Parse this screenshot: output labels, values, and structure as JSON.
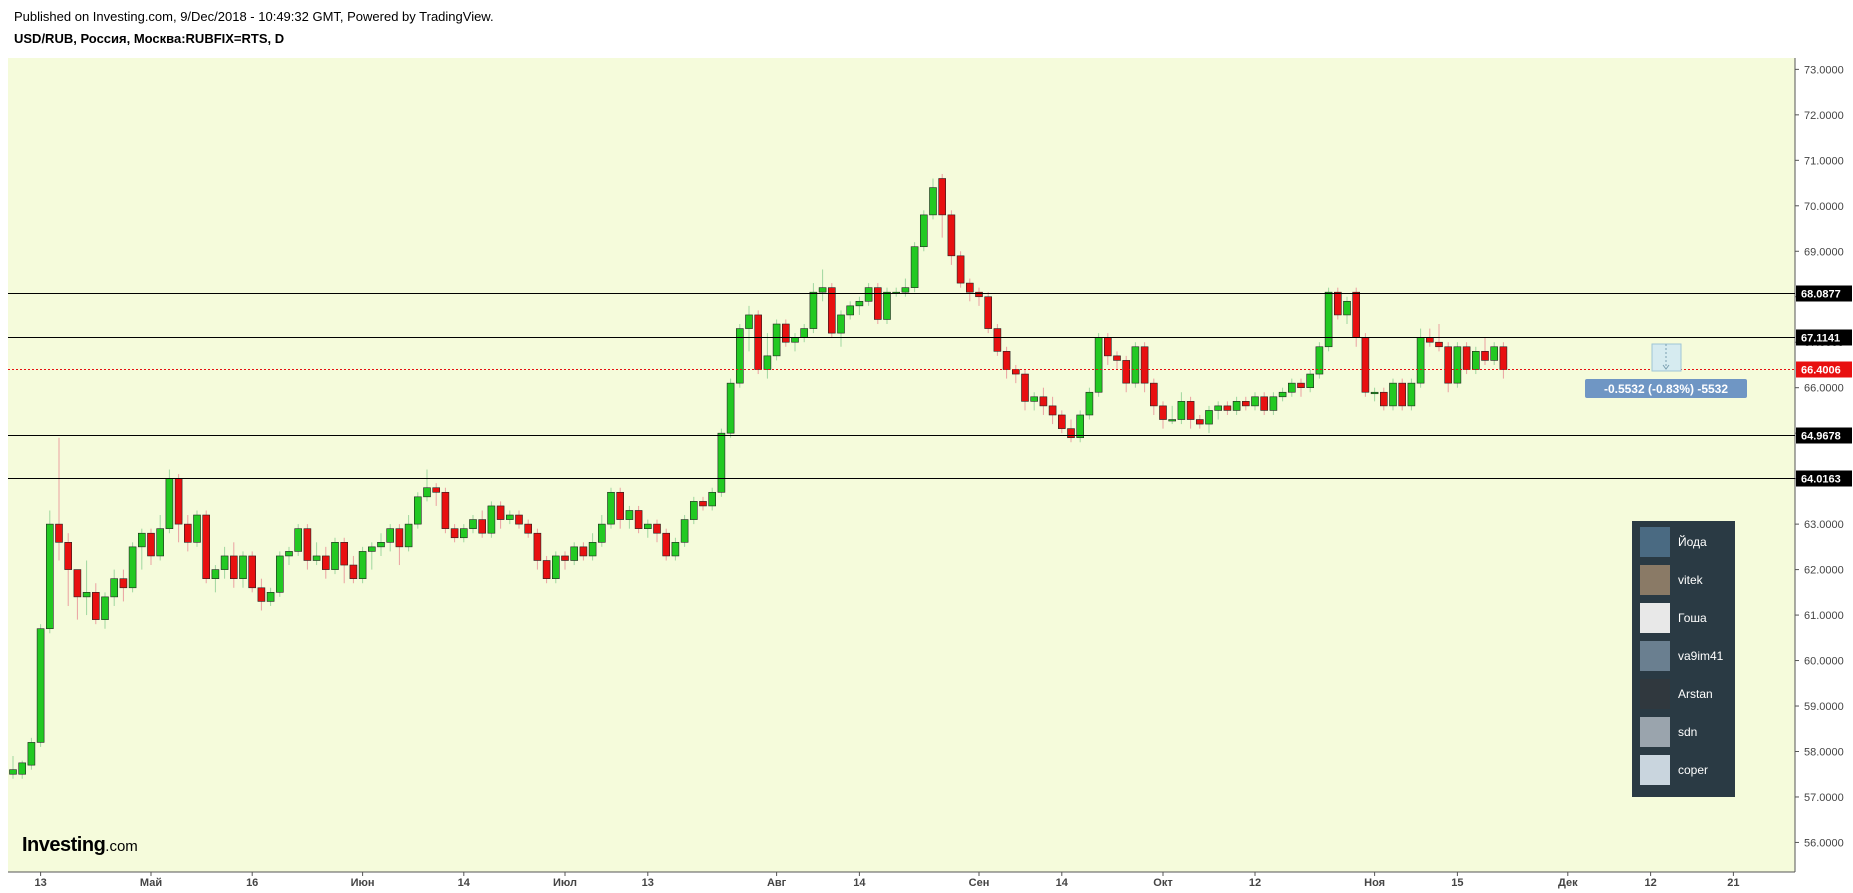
{
  "header": {
    "published": "Published on Investing.com, 9/Dec/2018 - 10:49:32 GMT, Powered by TradingView.",
    "symbol": "USD/RUB, Россия, Москва:RUBFIX=RTS, D"
  },
  "colors": {
    "background": "#f5fbdb",
    "up": "#22c922",
    "down": "#e81010",
    "last_line": "#e81010",
    "badge_dark": "#000000",
    "badge_red": "#e81010",
    "change_badge": "#6f96c4"
  },
  "chart_data": {
    "type": "candlestick",
    "y_ticks": [
      "56.0000",
      "57.0000",
      "58.0000",
      "59.0000",
      "60.0000",
      "61.0000",
      "62.0000",
      "63.0000",
      "64.0000",
      "65.0000",
      "66.0000",
      "67.0000",
      "68.0000",
      "69.0000",
      "70.0000",
      "71.0000",
      "72.0000",
      "73.0000"
    ],
    "ylim": [
      55.35,
      73.25
    ],
    "x_ticks": [
      {
        "label": "13",
        "day": 3
      },
      {
        "label": "Май",
        "day": 15
      },
      {
        "label": "16",
        "day": 26
      },
      {
        "label": "Июн",
        "day": 38
      },
      {
        "label": "14",
        "day": 49
      },
      {
        "label": "Июл",
        "day": 60
      },
      {
        "label": "13",
        "day": 69
      },
      {
        "label": "Авг",
        "day": 83
      },
      {
        "label": "14",
        "day": 92
      },
      {
        "label": "Сен",
        "day": 105
      },
      {
        "label": "14",
        "day": 114
      },
      {
        "label": "Окт",
        "day": 125
      },
      {
        "label": "12",
        "day": 135
      },
      {
        "label": "Ноя",
        "day": 148
      },
      {
        "label": "15",
        "day": 157
      },
      {
        "label": "Дек",
        "day": 169
      },
      {
        "label": "12",
        "day": 178
      },
      {
        "label": "21",
        "day": 187
      }
    ],
    "levels": [
      {
        "label": "68.0877",
        "value": 68.0877
      },
      {
        "label": "67.1141",
        "value": 67.1141
      },
      {
        "label": "64.9678",
        "value": 64.9678
      },
      {
        "label": "64.0163",
        "value": 64.0163
      }
    ],
    "last_price": {
      "label": "66.4006",
      "value": 66.4006
    },
    "change_label": "-0.5532 (-0.83%) -5532",
    "candles": [
      [
        57.5,
        57.6,
        57.9,
        57.4
      ],
      [
        57.5,
        57.75,
        57.8,
        57.4
      ],
      [
        57.7,
        58.2,
        58.3,
        57.6
      ],
      [
        58.2,
        60.7,
        60.8,
        58.1
      ],
      [
        60.7,
        63.0,
        63.3,
        60.6
      ],
      [
        63.0,
        62.6,
        64.9,
        62.2
      ],
      [
        62.6,
        62.0,
        62.8,
        61.2
      ],
      [
        62.0,
        61.4,
        62.0,
        60.9
      ],
      [
        61.4,
        61.5,
        62.2,
        61.0
      ],
      [
        61.5,
        60.9,
        61.7,
        60.8
      ],
      [
        60.9,
        61.4,
        61.5,
        60.7
      ],
      [
        61.4,
        61.8,
        62.0,
        61.2
      ],
      [
        61.8,
        61.6,
        62.0,
        61.3
      ],
      [
        61.6,
        62.5,
        62.6,
        61.5
      ],
      [
        62.5,
        62.8,
        62.9,
        62.0
      ],
      [
        62.8,
        62.3,
        62.9,
        62.1
      ],
      [
        62.3,
        62.9,
        63.2,
        62.2
      ],
      [
        62.9,
        64.0,
        64.2,
        62.8
      ],
      [
        64.0,
        63.0,
        64.1,
        62.6
      ],
      [
        63.0,
        62.6,
        63.2,
        62.4
      ],
      [
        62.6,
        63.2,
        63.3,
        62.5
      ],
      [
        63.2,
        61.8,
        63.3,
        61.7
      ],
      [
        61.8,
        62.0,
        62.1,
        61.5
      ],
      [
        62.0,
        62.3,
        62.5,
        61.8
      ],
      [
        62.3,
        61.8,
        62.6,
        61.6
      ],
      [
        61.8,
        62.3,
        62.4,
        61.6
      ],
      [
        62.3,
        61.6,
        62.4,
        61.5
      ],
      [
        61.6,
        61.3,
        61.8,
        61.1
      ],
      [
        61.3,
        61.5,
        61.6,
        61.2
      ],
      [
        61.5,
        62.3,
        62.4,
        61.4
      ],
      [
        62.3,
        62.4,
        62.5,
        62.1
      ],
      [
        62.4,
        62.9,
        63.0,
        62.3
      ],
      [
        62.9,
        62.2,
        63.0,
        62.0
      ],
      [
        62.2,
        62.3,
        62.6,
        62.1
      ],
      [
        62.3,
        62.0,
        62.5,
        61.8
      ],
      [
        62.0,
        62.6,
        62.7,
        61.9
      ],
      [
        62.6,
        62.1,
        62.7,
        61.7
      ],
      [
        62.1,
        61.8,
        62.3,
        61.7
      ],
      [
        61.8,
        62.4,
        62.5,
        61.7
      ],
      [
        62.4,
        62.5,
        62.6,
        62.0
      ],
      [
        62.5,
        62.6,
        62.8,
        62.3
      ],
      [
        62.6,
        62.9,
        63.0,
        62.4
      ],
      [
        62.9,
        62.5,
        63.0,
        62.1
      ],
      [
        62.5,
        63.0,
        63.2,
        62.4
      ],
      [
        63.0,
        63.6,
        63.7,
        62.9
      ],
      [
        63.6,
        63.8,
        64.2,
        63.5
      ],
      [
        63.8,
        63.7,
        63.9,
        63.4
      ],
      [
        63.7,
        62.9,
        63.8,
        62.8
      ],
      [
        62.9,
        62.7,
        63.0,
        62.6
      ],
      [
        62.7,
        62.9,
        63.0,
        62.6
      ],
      [
        62.9,
        63.1,
        63.2,
        62.8
      ],
      [
        63.1,
        62.8,
        63.3,
        62.7
      ],
      [
        62.8,
        63.4,
        63.5,
        62.7
      ],
      [
        63.4,
        63.1,
        63.5,
        62.9
      ],
      [
        63.1,
        63.2,
        63.3,
        63.0
      ],
      [
        63.2,
        63.0,
        63.3,
        62.9
      ],
      [
        63.0,
        62.8,
        63.1,
        62.7
      ],
      [
        62.8,
        62.2,
        62.9,
        62.0
      ],
      [
        62.2,
        61.8,
        62.3,
        61.7
      ],
      [
        61.8,
        62.3,
        62.4,
        61.7
      ],
      [
        62.3,
        62.2,
        62.4,
        62.0
      ],
      [
        62.2,
        62.5,
        62.6,
        62.1
      ],
      [
        62.5,
        62.3,
        62.6,
        62.2
      ],
      [
        62.3,
        62.6,
        62.8,
        62.2
      ],
      [
        62.6,
        63.0,
        63.2,
        62.5
      ],
      [
        63.0,
        63.7,
        63.8,
        62.9
      ],
      [
        63.7,
        63.1,
        63.8,
        62.9
      ],
      [
        63.1,
        63.3,
        63.4,
        62.9
      ],
      [
        63.3,
        62.9,
        63.4,
        62.8
      ],
      [
        62.9,
        63.0,
        63.1,
        62.7
      ],
      [
        63.0,
        62.8,
        63.1,
        62.6
      ],
      [
        62.8,
        62.3,
        62.9,
        62.2
      ],
      [
        62.3,
        62.6,
        62.7,
        62.2
      ],
      [
        62.6,
        63.1,
        63.2,
        62.5
      ],
      [
        63.1,
        63.5,
        63.6,
        63.0
      ],
      [
        63.5,
        63.4,
        63.6,
        63.3
      ],
      [
        63.4,
        63.7,
        63.8,
        63.3
      ],
      [
        63.7,
        65.0,
        65.1,
        63.6
      ],
      [
        65.0,
        66.1,
        66.2,
        64.9
      ],
      [
        66.1,
        67.3,
        67.4,
        66.0
      ],
      [
        67.3,
        67.6,
        67.8,
        66.8
      ],
      [
        67.6,
        66.4,
        67.7,
        66.3
      ],
      [
        66.4,
        66.7,
        67.2,
        66.2
      ],
      [
        66.7,
        67.4,
        67.5,
        66.6
      ],
      [
        67.4,
        67.0,
        67.5,
        66.9
      ],
      [
        67.0,
        67.1,
        67.2,
        66.8
      ],
      [
        67.1,
        67.3,
        67.4,
        67.0
      ],
      [
        67.3,
        68.1,
        68.3,
        67.2
      ],
      [
        68.1,
        68.2,
        68.6,
        67.9
      ],
      [
        68.2,
        67.2,
        68.3,
        67.1
      ],
      [
        67.2,
        67.6,
        67.7,
        66.9
      ],
      [
        67.6,
        67.8,
        67.9,
        67.5
      ],
      [
        67.8,
        67.9,
        68.0,
        67.6
      ],
      [
        67.9,
        68.2,
        68.3,
        67.8
      ],
      [
        68.2,
        67.5,
        68.3,
        67.4
      ],
      [
        67.5,
        68.1,
        68.2,
        67.4
      ],
      [
        68.1,
        68.1,
        68.2,
        68.0
      ],
      [
        68.1,
        68.2,
        68.4,
        68.0
      ],
      [
        68.2,
        69.1,
        69.2,
        68.1
      ],
      [
        69.1,
        69.8,
        69.9,
        69.0
      ],
      [
        69.8,
        70.4,
        70.6,
        69.7
      ],
      [
        70.6,
        69.8,
        70.7,
        69.3
      ],
      [
        69.8,
        68.9,
        69.9,
        68.7
      ],
      [
        68.9,
        68.3,
        69.0,
        68.2
      ],
      [
        68.3,
        68.1,
        68.4,
        67.9
      ],
      [
        68.1,
        68.0,
        68.2,
        67.8
      ],
      [
        68.0,
        67.3,
        68.1,
        67.2
      ],
      [
        67.3,
        66.8,
        67.4,
        66.7
      ],
      [
        66.8,
        66.4,
        66.9,
        66.2
      ],
      [
        66.4,
        66.3,
        66.5,
        66.1
      ],
      [
        66.3,
        65.7,
        66.4,
        65.5
      ],
      [
        65.7,
        65.8,
        65.9,
        65.5
      ],
      [
        65.8,
        65.6,
        66.0,
        65.4
      ],
      [
        65.6,
        65.4,
        65.8,
        65.2
      ],
      [
        65.4,
        65.1,
        65.5,
        65.0
      ],
      [
        65.1,
        64.9,
        65.3,
        64.8
      ],
      [
        64.9,
        65.4,
        65.5,
        64.8
      ],
      [
        65.4,
        65.9,
        66.0,
        65.3
      ],
      [
        65.9,
        67.1,
        67.2,
        65.8
      ],
      [
        67.1,
        66.7,
        67.2,
        66.5
      ],
      [
        66.7,
        66.6,
        66.8,
        66.4
      ],
      [
        66.6,
        66.1,
        66.7,
        65.9
      ],
      [
        66.1,
        66.9,
        67.0,
        66.0
      ],
      [
        66.9,
        66.1,
        67.0,
        65.9
      ],
      [
        66.1,
        65.6,
        66.2,
        65.4
      ],
      [
        65.6,
        65.3,
        65.7,
        65.1
      ],
      [
        65.3,
        65.3,
        65.6,
        65.2
      ],
      [
        65.3,
        65.7,
        65.9,
        65.2
      ],
      [
        65.7,
        65.3,
        65.8,
        65.1
      ],
      [
        65.3,
        65.2,
        65.4,
        65.1
      ],
      [
        65.2,
        65.5,
        65.6,
        65.0
      ],
      [
        65.5,
        65.6,
        65.7,
        65.3
      ],
      [
        65.6,
        65.5,
        65.7,
        65.4
      ],
      [
        65.5,
        65.7,
        65.8,
        65.4
      ],
      [
        65.7,
        65.6,
        65.8,
        65.5
      ],
      [
        65.6,
        65.8,
        65.9,
        65.5
      ],
      [
        65.8,
        65.5,
        65.9,
        65.4
      ],
      [
        65.5,
        65.8,
        65.9,
        65.4
      ],
      [
        65.8,
        65.9,
        66.0,
        65.7
      ],
      [
        65.9,
        66.1,
        66.2,
        65.8
      ],
      [
        66.1,
        66.0,
        66.2,
        65.8
      ],
      [
        66.0,
        66.3,
        66.4,
        65.9
      ],
      [
        66.3,
        66.9,
        67.0,
        66.2
      ],
      [
        66.9,
        68.1,
        68.2,
        66.8
      ],
      [
        68.1,
        67.6,
        68.2,
        67.5
      ],
      [
        67.6,
        67.9,
        68.0,
        67.4
      ],
      [
        68.1,
        67.1,
        68.2,
        66.9
      ],
      [
        67.1,
        65.9,
        67.2,
        65.8
      ],
      [
        65.9,
        65.9,
        66.0,
        65.7
      ],
      [
        65.9,
        65.6,
        66.0,
        65.5
      ],
      [
        65.6,
        66.1,
        66.2,
        65.5
      ],
      [
        66.1,
        65.6,
        66.2,
        65.5
      ],
      [
        65.6,
        66.1,
        66.2,
        65.5
      ],
      [
        66.1,
        67.1,
        67.3,
        66.0
      ],
      [
        67.1,
        67.0,
        67.3,
        66.9
      ],
      [
        67.0,
        66.9,
        67.4,
        66.8
      ],
      [
        66.9,
        66.1,
        67.0,
        65.9
      ],
      [
        66.1,
        66.9,
        67.0,
        66.0
      ],
      [
        66.9,
        66.4,
        67.0,
        66.3
      ],
      [
        66.4,
        66.8,
        66.9,
        66.3
      ],
      [
        66.8,
        66.6,
        67.1,
        66.5
      ],
      [
        66.6,
        66.9,
        67.0,
        66.5
      ],
      [
        66.9,
        66.4,
        67.0,
        66.2
      ]
    ]
  },
  "users": [
    {
      "name": "Йода",
      "avatar": "jedi-avatar"
    },
    {
      "name": "vitek",
      "avatar": "bear-avatar"
    },
    {
      "name": "Гоша",
      "avatar": "document-avatar"
    },
    {
      "name": "va9im41",
      "avatar": "landscape-avatar"
    },
    {
      "name": "Arstan",
      "avatar": "wolf-avatar"
    },
    {
      "name": "sdn",
      "avatar": "suit-avatar"
    },
    {
      "name": "coper",
      "avatar": "sunlight-avatar"
    }
  ],
  "logo": {
    "name": "Investing",
    "domain": ".com"
  }
}
